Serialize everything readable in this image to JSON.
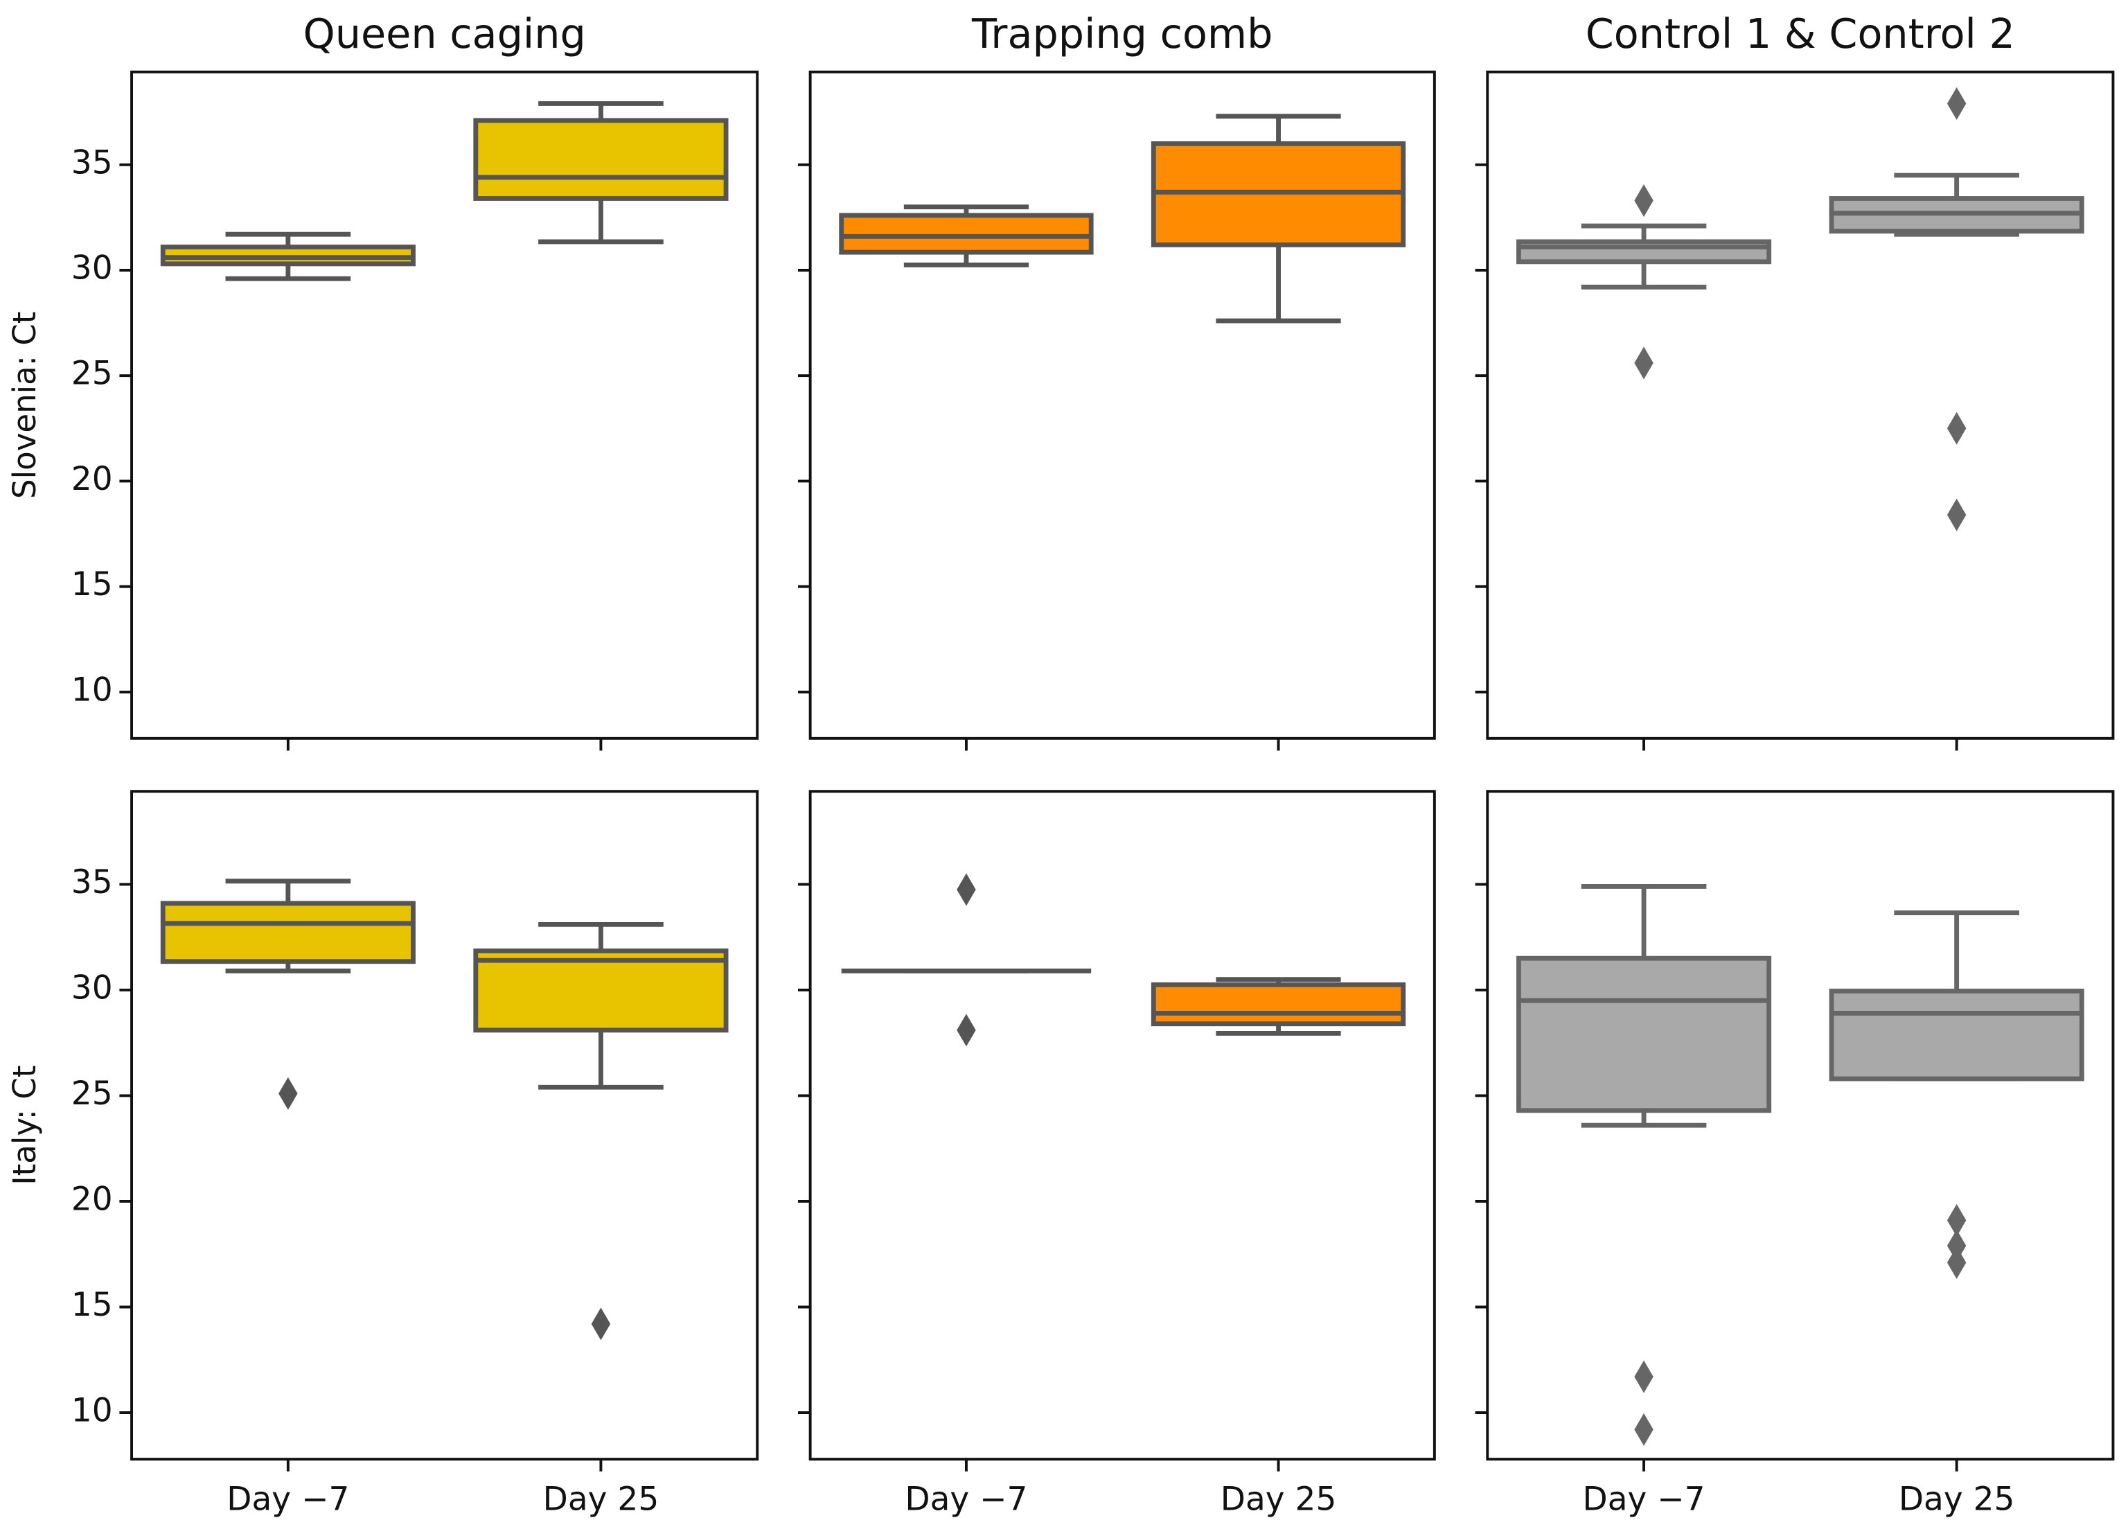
{
  "chart_data": [
    {
      "type": "box",
      "title": "Queen caging",
      "ylabel": "Slovenia: Ct",
      "color": "#e8c300",
      "edge": "#555555",
      "ylim": [
        7.8,
        39.4
      ],
      "yticks": [
        10,
        15,
        20,
        25,
        30,
        35
      ],
      "ytick_labels": true,
      "boxes": [
        {
          "whislo": 29.6,
          "q1": 30.3,
          "med": 30.6,
          "q3": 31.1,
          "whishi": 31.7,
          "fliers": []
        },
        {
          "whislo": 31.35,
          "q1": 33.4,
          "med": 34.4,
          "q3": 37.1,
          "whishi": 37.9,
          "fliers": []
        }
      ]
    },
    {
      "type": "box",
      "title": "Trapping comb",
      "color": "#ff8c00",
      "edge": "#555555",
      "ylim": [
        7.8,
        39.4
      ],
      "yticks": [
        10,
        15,
        20,
        25,
        30,
        35
      ],
      "ytick_labels": false,
      "boxes": [
        {
          "whislo": 30.25,
          "q1": 30.85,
          "med": 31.6,
          "q3": 32.6,
          "whishi": 33.0,
          "fliers": []
        },
        {
          "whislo": 27.6,
          "q1": 31.2,
          "med": 33.7,
          "q3": 36.0,
          "whishi": 37.3,
          "fliers": []
        }
      ]
    },
    {
      "type": "box",
      "title": "Control 1 & Control 2",
      "color": "#a9a9a9",
      "edge": "#666666",
      "ylim": [
        7.8,
        39.4
      ],
      "yticks": [
        10,
        15,
        20,
        25,
        30,
        35
      ],
      "ytick_labels": false,
      "boxes": [
        {
          "whislo": 29.2,
          "q1": 30.4,
          "med": 31.1,
          "q3": 31.35,
          "whishi": 32.1,
          "fliers": [
            33.3,
            25.6
          ]
        },
        {
          "whislo": 31.7,
          "q1": 31.85,
          "med": 32.7,
          "q3": 33.4,
          "whishi": 34.5,
          "fliers": [
            37.9,
            22.5,
            18.4
          ]
        }
      ]
    },
    {
      "type": "box",
      "ylabel": "Italy: Ct",
      "color": "#e8c300",
      "edge": "#555555",
      "categories": [
        "Day −7",
        "Day 25"
      ],
      "ylim": [
        7.8,
        39.4
      ],
      "yticks": [
        10,
        15,
        20,
        25,
        30,
        35
      ],
      "ytick_labels": true,
      "boxes": [
        {
          "whislo": 30.9,
          "q1": 31.35,
          "med": 33.15,
          "q3": 34.1,
          "whishi": 35.15,
          "fliers": [
            25.1
          ]
        },
        {
          "whislo": 25.4,
          "q1": 28.1,
          "med": 31.4,
          "q3": 31.85,
          "whishi": 33.1,
          "fliers": [
            14.2
          ]
        }
      ]
    },
    {
      "type": "box",
      "color": "#ff8c00",
      "edge": "#555555",
      "categories": [
        "Day −7",
        "Day 25"
      ],
      "ylim": [
        7.8,
        39.4
      ],
      "yticks": [
        10,
        15,
        20,
        25,
        30,
        35
      ],
      "ytick_labels": false,
      "boxes": [
        {
          "whislo": 30.9,
          "q1": 30.9,
          "med": 30.9,
          "q3": 30.9,
          "whishi": 30.9,
          "fliers": [
            34.75,
            28.1
          ]
        },
        {
          "whislo": 27.95,
          "q1": 28.4,
          "med": 28.9,
          "q3": 30.25,
          "whishi": 30.5,
          "fliers": []
        }
      ]
    },
    {
      "type": "box",
      "color": "#a9a9a9",
      "edge": "#666666",
      "categories": [
        "Day −7",
        "Day 25"
      ],
      "ylim": [
        7.8,
        39.4
      ],
      "yticks": [
        10,
        15,
        20,
        25,
        30,
        35
      ],
      "ytick_labels": false,
      "boxes": [
        {
          "whislo": 23.6,
          "q1": 24.3,
          "med": 29.5,
          "q3": 31.5,
          "whishi": 34.9,
          "fliers": [
            11.7,
            9.2
          ]
        },
        {
          "whislo": 25.8,
          "q1": 25.8,
          "med": 28.9,
          "q3": 29.95,
          "whishi": 33.65,
          "fliers": [
            19.1,
            17.9,
            17.1
          ]
        }
      ]
    }
  ]
}
